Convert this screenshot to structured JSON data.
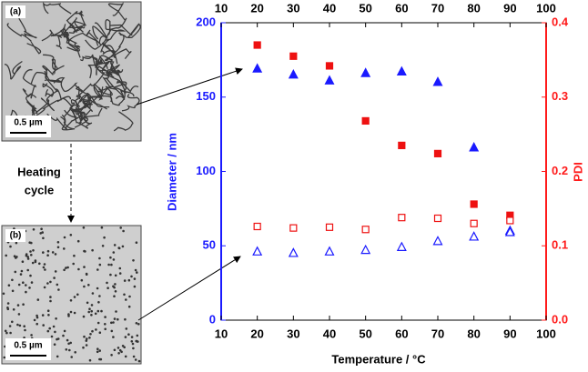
{
  "chart_data": {
    "type": "scatter",
    "x": [
      20,
      30,
      40,
      50,
      60,
      70,
      80,
      90
    ],
    "xlim": [
      10,
      100
    ],
    "xticks": [
      10,
      20,
      30,
      40,
      50,
      60,
      70,
      80,
      90,
      100
    ],
    "top_axis": true,
    "ylim": [
      0,
      200
    ],
    "yticks": [
      0,
      50,
      100,
      150,
      200
    ],
    "y2lim": [
      0,
      0.4
    ],
    "y2ticks": [
      {
        "value": 0,
        "label": "0.0"
      },
      {
        "value": 0.1,
        "label": "0.1"
      },
      {
        "value": 0.2,
        "label": "0.2"
      },
      {
        "value": 0.3,
        "label": "0.3"
      },
      {
        "value": 0.4,
        "label": "0.4"
      }
    ],
    "x_label": "Temperature / °C",
    "y_label": "Diameter / nm",
    "y2_label": "PDI",
    "y_axis_color": "#1a1aff",
    "y2_axis_color": "#ff1a1a",
    "series": [
      {
        "color": "#1a1aff",
        "marker": "triangle",
        "filled": true,
        "values": [
          169,
          165,
          161,
          166,
          167,
          160,
          116,
          60
        ]
      },
      {
        "color": "#1a1aff",
        "marker": "triangle",
        "filled": false,
        "values": [
          46,
          45,
          46,
          47,
          49,
          53,
          56,
          59
        ]
      },
      {
        "color": "#ee1111",
        "marker": "square",
        "filled": true,
        "axis": "y2",
        "values": [
          0.37,
          0.355,
          0.342,
          0.268,
          0.235,
          0.224,
          0.156,
          0.141
        ]
      },
      {
        "color": "#ee1111",
        "marker": "square",
        "filled": false,
        "axis": "y2",
        "values": [
          0.126,
          0.124,
          0.125,
          0.122,
          0.138,
          0.137,
          0.13,
          0.134
        ]
      }
    ]
  },
  "figure": {
    "panels": [
      {
        "label": "(a)",
        "scale_bar": "0.5 µm"
      },
      {
        "label": "(b)",
        "scale_bar": "0.5 µm"
      }
    ],
    "annotation": [
      "Heating",
      "cycle"
    ]
  }
}
